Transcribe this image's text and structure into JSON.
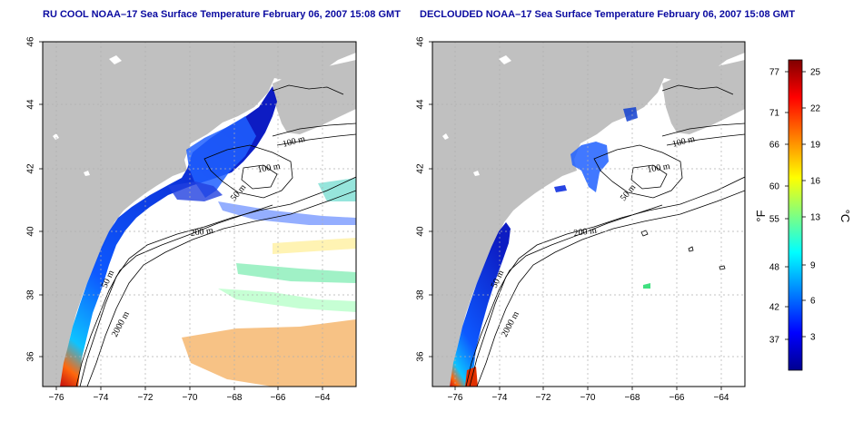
{
  "panels": [
    {
      "title": "RU COOL NOAA–17 Sea Surface Temperature February 06, 2007 15:08 GMT",
      "depth_labels": [
        "100 m",
        "100 m",
        "50 m",
        "200 m",
        "50 m",
        "2000 m"
      ]
    },
    {
      "title": "DECLOUDED NOAA–17 Sea Surface Temperature February 06, 2007 15:08 GMT",
      "depth_labels": [
        "100 m",
        "100 m",
        "50 m",
        "200 m",
        "50 m",
        "2000 m"
      ]
    }
  ],
  "axes": {
    "lon_ticks": [
      "−76",
      "−74",
      "−72",
      "−70",
      "−68",
      "−66",
      "−64"
    ],
    "lat_ticks": [
      "46",
      "44",
      "42",
      "40",
      "38",
      "36"
    ]
  },
  "colorbar": {
    "fahrenheit_ticks": [
      "77",
      "71",
      "66",
      "60",
      "55",
      "48",
      "42",
      "37"
    ],
    "celsius_ticks": [
      "25",
      "22",
      "19",
      "16",
      "13",
      "9",
      "6",
      "3"
    ],
    "unit_f": "°F",
    "unit_c": "°C",
    "gradient": [
      "#00008f",
      "#0000ff",
      "#0080ff",
      "#00ffff",
      "#80ff80",
      "#ffff00",
      "#ff8000",
      "#ff0000",
      "#800000"
    ]
  },
  "colors": {
    "land": "#c0c0c0",
    "ocean": "#ffffff",
    "grid": "#b0b0b0",
    "title": "#0a0aa0"
  }
}
